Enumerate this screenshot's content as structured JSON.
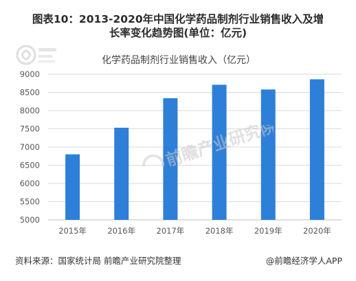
{
  "figure_title_line1": "图表10：2013-2020年中国化学药品制剂行业销售收入及增",
  "figure_title_line2": "长率变化趋势图(单位：亿元)",
  "source_text": "资料来源：国家统计局 前瞻产业研究院整理",
  "credit_text": "@前瞻经济学人APP",
  "watermark_text": "前瞻产业研究院",
  "colors": {
    "bar": "#2e7fd8",
    "grid": "#d9d9d9",
    "axis_text": "#555555",
    "watermark": "#c8c8c8"
  },
  "chart_data": {
    "type": "bar",
    "title": "化学药品制剂行业销售收入（亿元）",
    "xlabel": "",
    "ylabel": "",
    "categories": [
      "2015年",
      "2016年",
      "2017年",
      "2018年",
      "2019年",
      "2020年"
    ],
    "values": [
      6800,
      7530,
      8340,
      8710,
      8580,
      8860
    ],
    "ylim": [
      5000,
      9000
    ],
    "yticks": [
      5000,
      5500,
      6000,
      6500,
      7000,
      7500,
      8000,
      8500,
      9000
    ],
    "grid": true,
    "legend": "none"
  }
}
